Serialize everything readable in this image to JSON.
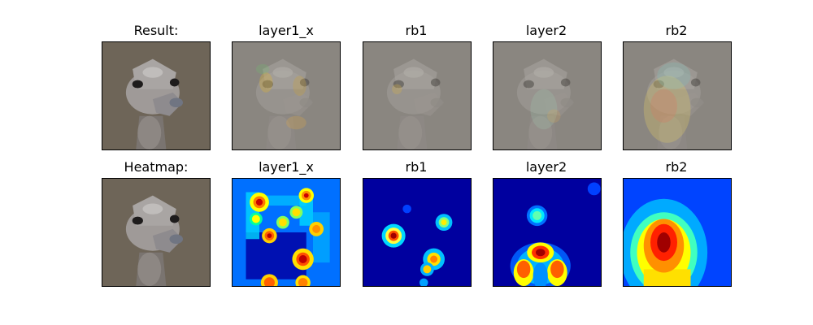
{
  "figure": {
    "rows": [
      {
        "name": "result-row",
        "panels": [
          {
            "title": "Result:",
            "kind": "photo",
            "tint": "none"
          },
          {
            "title": "layer1_x",
            "kind": "photo-overlay",
            "tint": "layer1"
          },
          {
            "title": "rb1",
            "kind": "photo-overlay",
            "tint": "rb1"
          },
          {
            "title": "layer2",
            "kind": "photo-overlay",
            "tint": "layer2"
          },
          {
            "title": "rb2",
            "kind": "photo-overlay",
            "tint": "rb2"
          }
        ]
      },
      {
        "name": "heatmap-row",
        "panels": [
          {
            "title": "Heatmap:",
            "kind": "photo",
            "tint": "none"
          },
          {
            "title": "layer1_x",
            "kind": "heatmap",
            "map": "layer1"
          },
          {
            "title": "rb1",
            "kind": "heatmap",
            "map": "rb1"
          },
          {
            "title": "layer2",
            "kind": "heatmap",
            "map": "layer2"
          },
          {
            "title": "rb2",
            "kind": "heatmap",
            "map": "rb2"
          }
        ]
      }
    ],
    "colors": {
      "photo_background": "#6e6558",
      "overlay_background": "#8a8680",
      "heatmap_low": "#00008f",
      "heatmap_high": "#b40000"
    }
  }
}
